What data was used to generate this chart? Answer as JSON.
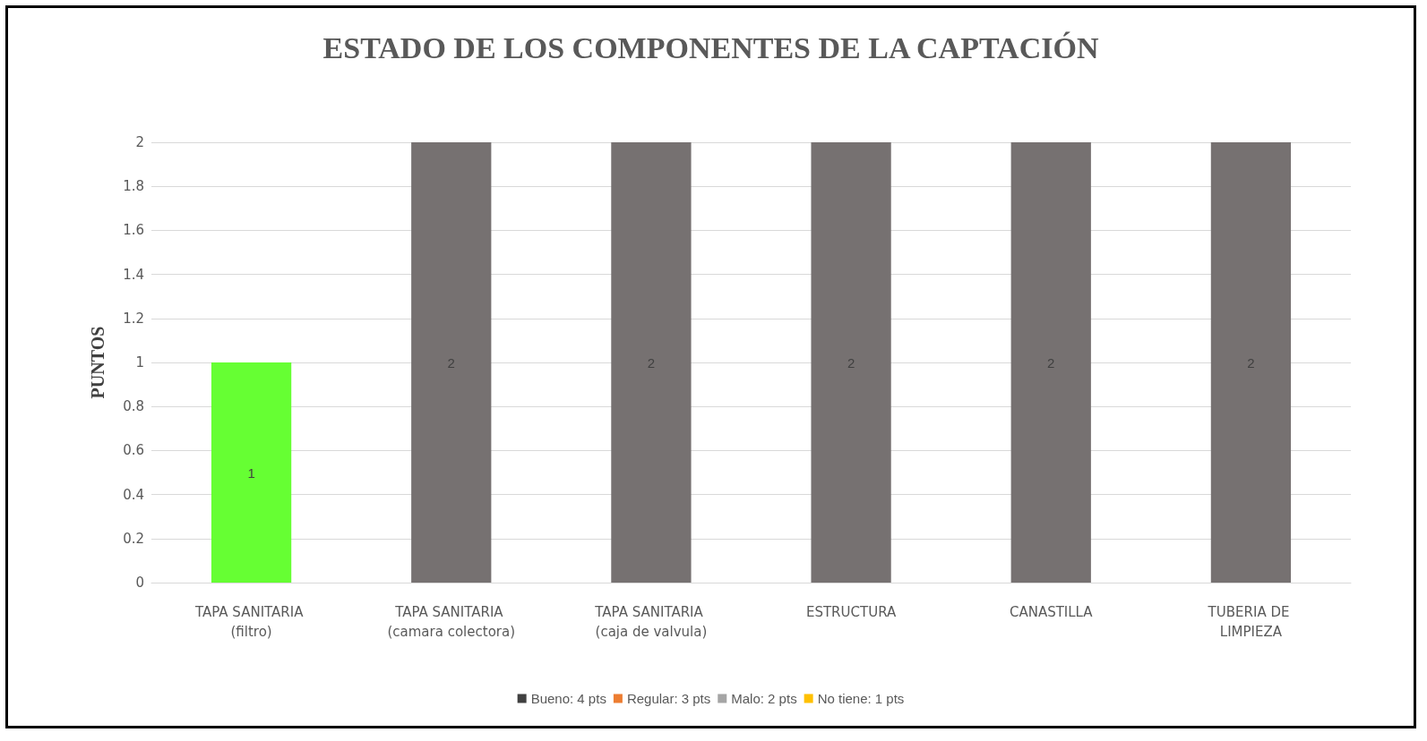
{
  "chart_data": {
    "type": "bar",
    "title": "ESTADO DE LOS COMPONENTES DE LA CAPTACIÓN",
    "ylabel": "PUNTOS",
    "categories": [
      "TAPA SANITARIA (filtro)",
      "TAPA SANITARIA (camara colectora)",
      "TAPA SANITARIA (caja de valvula)",
      "ESTRUCTURA",
      "CANASTILLA",
      "TUBERIA DE LIMPIEZA"
    ],
    "series": [
      {
        "values": [
          1,
          2,
          2,
          2,
          2,
          2
        ],
        "colors": [
          "#66ff33",
          "#767171",
          "#767171",
          "#767171",
          "#767171",
          "#767171"
        ]
      },
      {
        "name": "Bueno: 4 pts",
        "color": "#404040",
        "values": [
          null,
          null,
          null,
          null,
          null,
          null
        ]
      },
      {
        "name": "Regular: 3 pts",
        "color": "#ed7d31",
        "values": [
          null,
          null,
          null,
          null,
          null,
          null
        ]
      },
      {
        "name": "Malo: 2 pts",
        "color": "#a5a5a5",
        "values": [
          null,
          null,
          null,
          null,
          null,
          null
        ]
      },
      {
        "name": "No tiene: 1 pts",
        "color": "#ffc000",
        "values": [
          null,
          null,
          null,
          null,
          null,
          null
        ]
      }
    ],
    "ylim": [
      0,
      2
    ],
    "yticks": [
      0,
      0.2,
      0.4,
      0.6,
      0.8,
      1,
      1.2,
      1.4,
      1.6,
      1.8,
      2
    ],
    "grid": true,
    "legend": "bottom",
    "data_labels": true
  }
}
